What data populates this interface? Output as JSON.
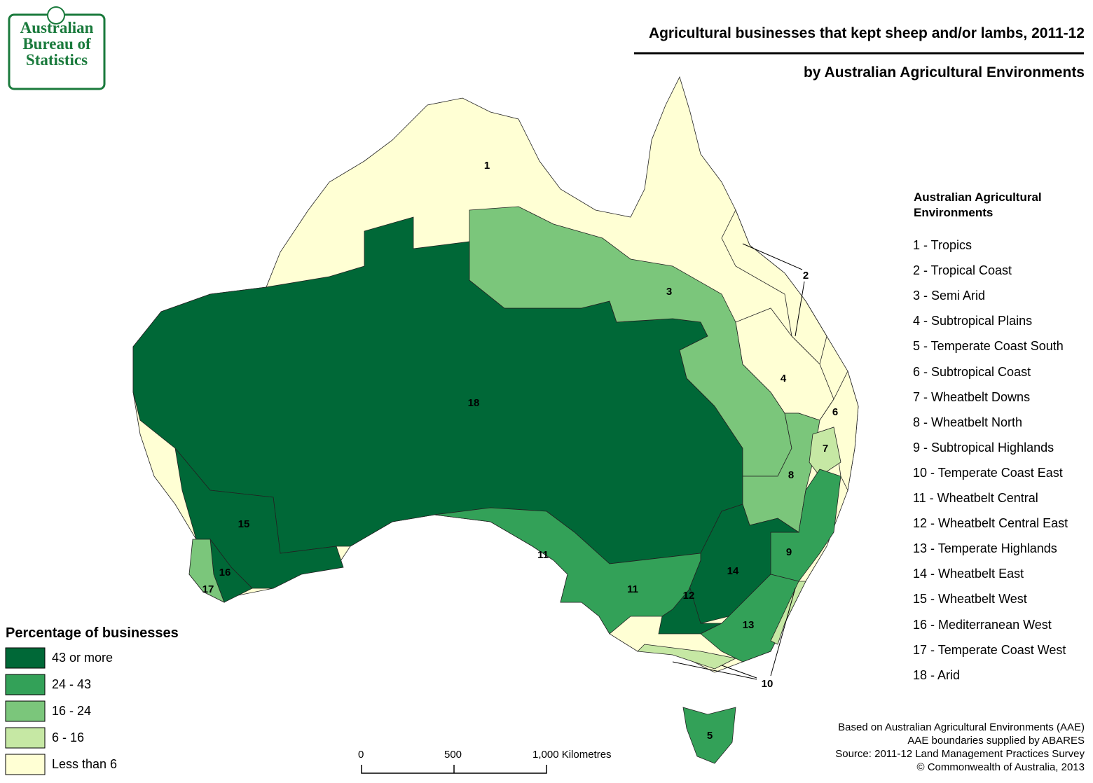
{
  "logo": {
    "lines": [
      "Australian",
      "Bureau of",
      "Statistics"
    ]
  },
  "header": {
    "title": "Agricultural businesses that kept sheep and/or lambs, 2011-12",
    "subtitle": "by Australian Agricultural Environments"
  },
  "regions": [
    {
      "label": "1",
      "color": "#ffffd4"
    },
    {
      "label": "2",
      "color": "#ffffd4"
    },
    {
      "label": "3",
      "color": "#7bc67b"
    },
    {
      "label": "4",
      "color": "#ffffd4"
    },
    {
      "label": "5",
      "color": "#33a158"
    },
    {
      "label": "6",
      "color": "#ffffd4"
    },
    {
      "label": "7",
      "color": "#c6e8a4"
    },
    {
      "label": "8",
      "color": "#7bc67b"
    },
    {
      "label": "9",
      "color": "#33a158"
    },
    {
      "label": "10",
      "color": "#c6e8a4"
    },
    {
      "label": "11",
      "color": "#33a158"
    },
    {
      "label": "12",
      "color": "#006837"
    },
    {
      "label": "13",
      "color": "#33a158"
    },
    {
      "label": "14",
      "color": "#006837"
    },
    {
      "label": "15",
      "color": "#006837"
    },
    {
      "label": "16",
      "color": "#006837"
    },
    {
      "label": "17",
      "color": "#7bc67b"
    },
    {
      "label": "18",
      "color": "#006837"
    }
  ],
  "aae_legend": {
    "title": "Australian Agricultural Environments",
    "items": [
      "1 - Tropics",
      "2 - Tropical Coast",
      "3 - Semi Arid",
      "4 - Subtropical Plains",
      "5 - Temperate Coast South",
      "6 - Subtropical Coast",
      "7 - Wheatbelt Downs",
      "8 - Wheatbelt North",
      "9 - Subtropical Highlands",
      "10 - Temperate Coast East",
      "11 - Wheatbelt Central",
      "12 - Wheatbelt Central East",
      "13 - Temperate Highlands",
      "14 - Wheatbelt East",
      "15 - Wheatbelt West",
      "16 - Mediterranean West",
      "17 - Temperate Coast West",
      "18 - Arid"
    ]
  },
  "percent_legend": {
    "title": "Percentage of businesses",
    "classes": [
      {
        "label": "43 or more",
        "color": "#006837"
      },
      {
        "label": "24 - 43",
        "color": "#33a158"
      },
      {
        "label": "16 - 24",
        "color": "#7bc67b"
      },
      {
        "label": "6 - 16",
        "color": "#c6e8a4"
      },
      {
        "label": "Less than 6",
        "color": "#ffffd4"
      }
    ]
  },
  "scale_bar": {
    "labels": [
      "0",
      "500",
      "1,000 Kilometres"
    ]
  },
  "source": {
    "lines": [
      "Based on Australian Agricultural Environments (AAE)",
      "AAE boundaries supplied by ABARES",
      "Source: 2011-12 Land Management Practices Survey",
      "© Commonwealth of Australia, 2013"
    ]
  }
}
